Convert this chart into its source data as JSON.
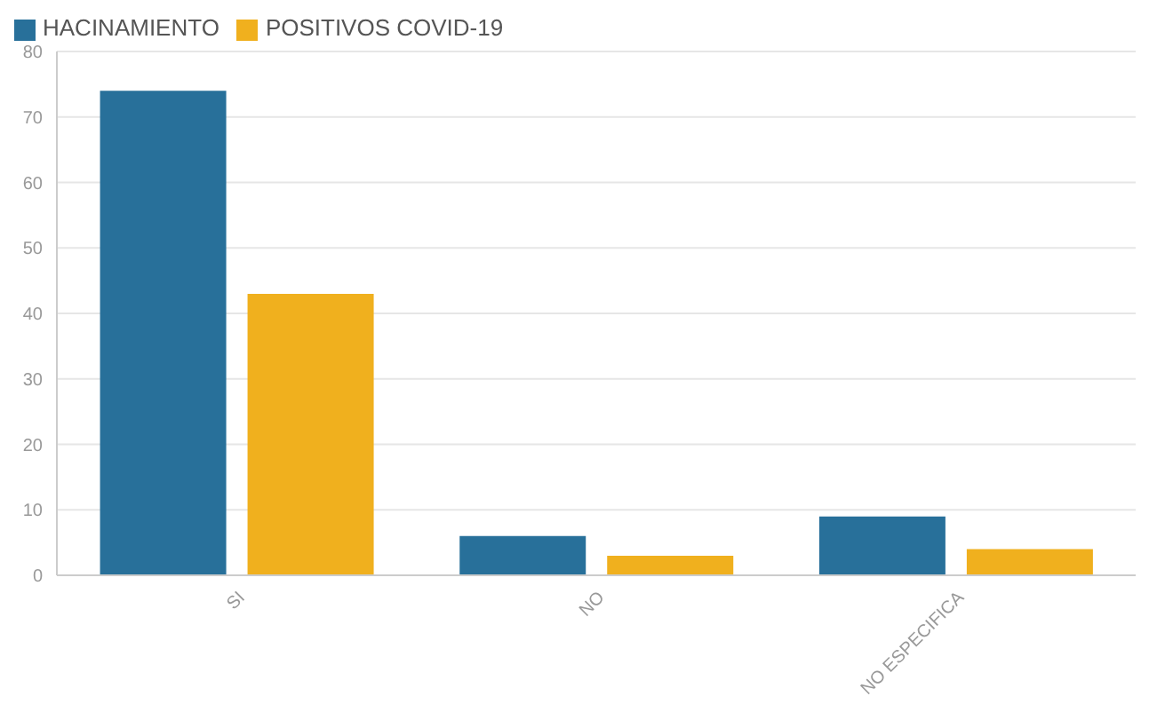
{
  "chart_data": {
    "type": "bar",
    "categories": [
      "SI",
      "NO",
      "NO ESPECIFICA"
    ],
    "series": [
      {
        "name": "HACINAMIENTO",
        "color": "#28709a",
        "values": [
          74,
          6,
          9
        ]
      },
      {
        "name": "POSITIVOS COVID-19",
        "color": "#f0b01e",
        "values": [
          43,
          3,
          4
        ]
      }
    ],
    "ylim": [
      0,
      80
    ],
    "yticks": [
      0,
      10,
      20,
      30,
      40,
      50,
      60,
      70,
      80
    ],
    "grid": "y",
    "legend": "top left"
  }
}
